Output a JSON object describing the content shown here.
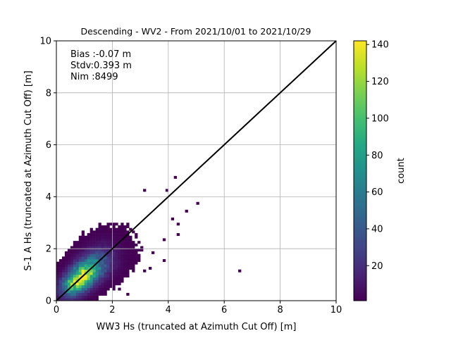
{
  "chart_data": {
    "type": "heatmap",
    "title": "Descending - WV2 - From 2021/10/01 to 2021/10/29",
    "xlabel": "WW3 Hs (truncated at Azimuth Cut Off) [m]",
    "ylabel": "S-1 A Hs (truncated at Azimuth Cut Off) [m]",
    "xlim": [
      0,
      10
    ],
    "ylim": [
      0,
      10
    ],
    "xticks": [
      "0",
      "2",
      "4",
      "6",
      "8",
      "10"
    ],
    "yticks": [
      "0",
      "2",
      "4",
      "6",
      "8",
      "10"
    ],
    "grid": true,
    "bin_size": 0.1,
    "stats_lines": [
      "Bias :-0.07 m",
      "Stdv:0.393 m",
      "Nim :8499"
    ],
    "reference_line": {
      "from": [
        0,
        0
      ],
      "to": [
        10,
        10
      ],
      "color": "#000000"
    },
    "colorbar": {
      "label": "count",
      "colormap": "viridis",
      "range": [
        1,
        142
      ],
      "ticks": [
        "20",
        "40",
        "60",
        "80",
        "100",
        "120",
        "140"
      ]
    },
    "density_model": {
      "peak_x": 0.8,
      "peak_y": 0.8,
      "peak_count": 142,
      "spread_along_diagonal": 0.75,
      "spread_across_diagonal": 0.28,
      "max_x": 5.1,
      "max_y": 4.8
    },
    "outliers": [
      {
        "x": 6.55,
        "y": 1.15,
        "count": 1
      },
      {
        "x": 4.25,
        "y": 4.75,
        "count": 1
      },
      {
        "x": 3.15,
        "y": 4.25,
        "count": 1
      },
      {
        "x": 3.95,
        "y": 4.25,
        "count": 1
      },
      {
        "x": 5.0,
        "y": 3.75,
        "count": 1
      },
      {
        "x": 4.65,
        "y": 3.45,
        "count": 1
      },
      {
        "x": 4.15,
        "y": 3.15,
        "count": 1
      },
      {
        "x": 4.35,
        "y": 2.95,
        "count": 1
      },
      {
        "x": 4.35,
        "y": 2.55,
        "count": 1
      },
      {
        "x": 3.85,
        "y": 2.35,
        "count": 1
      },
      {
        "x": 3.45,
        "y": 1.85,
        "count": 1
      },
      {
        "x": 3.85,
        "y": 1.55,
        "count": 1
      },
      {
        "x": 3.35,
        "y": 1.25,
        "count": 1
      },
      {
        "x": 3.15,
        "y": 1.15,
        "count": 1
      },
      {
        "x": 2.55,
        "y": 0.25,
        "count": 1
      },
      {
        "x": 2.25,
        "y": 0.45,
        "count": 1
      }
    ]
  }
}
